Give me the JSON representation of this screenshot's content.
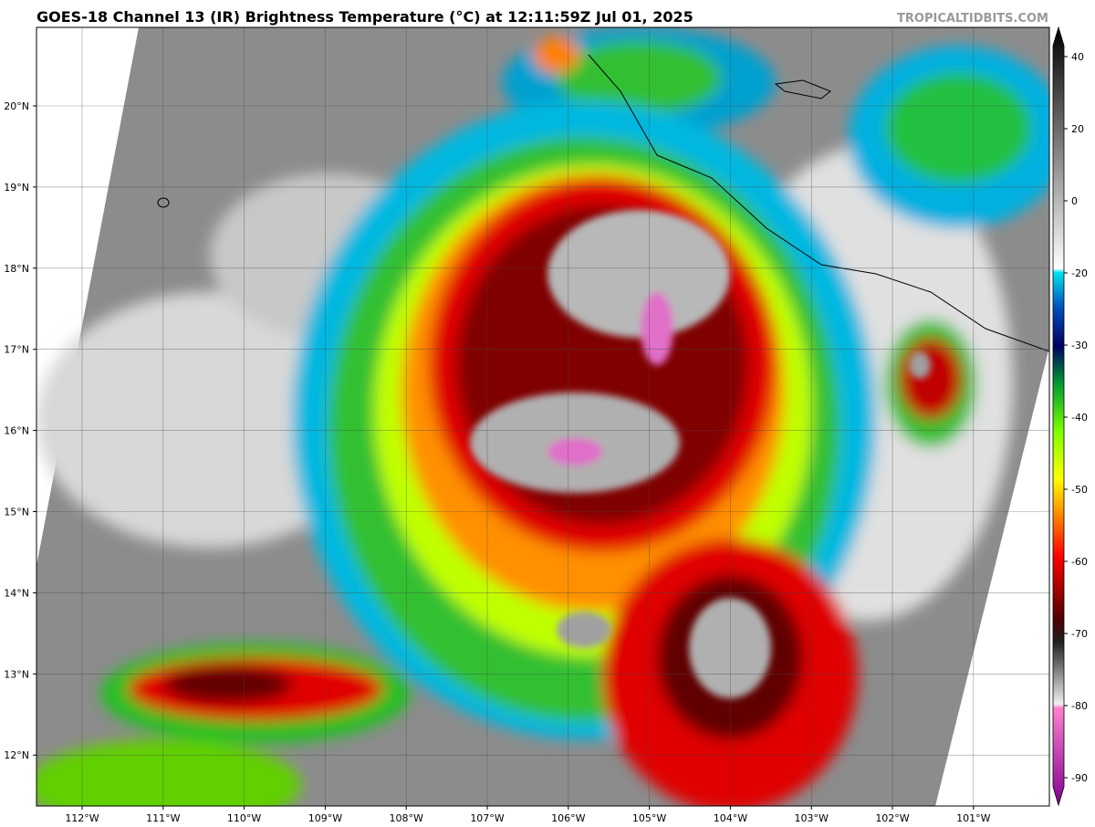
{
  "header": {
    "title": "GOES-18 Channel 13 (IR) Brightness Temperature (°C) at 12:11:59Z Jul 01, 2025",
    "credit": "TROPICALTIDBITS.COM"
  },
  "map": {
    "lat_labels": [
      "20°N",
      "19°N",
      "18°N",
      "17°N",
      "16°N",
      "15°N",
      "14°N",
      "13°N",
      "12°N"
    ],
    "lon_labels": [
      "112°W",
      "111°W",
      "110°W",
      "109°W",
      "108°W",
      "107°W",
      "106°W",
      "105°W",
      "104°W",
      "103°W",
      "102°W",
      "101°W"
    ]
  },
  "colorbar": {
    "ticks": [
      40,
      20,
      0,
      -20,
      -30,
      -40,
      -50,
      -60,
      -70,
      -80,
      -90
    ]
  }
}
